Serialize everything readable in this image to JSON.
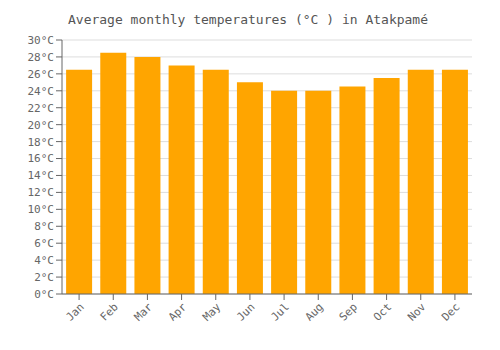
{
  "chart_data": {
    "type": "bar",
    "title": "Average monthly temperatures (°C ) in Atakpamé",
    "categories": [
      "Jan",
      "Feb",
      "Mar",
      "Apr",
      "May",
      "Jun",
      "Jul",
      "Aug",
      "Sep",
      "Oct",
      "Nov",
      "Dec"
    ],
    "values": [
      26.5,
      28.5,
      28.0,
      27.0,
      26.5,
      25.0,
      24.0,
      24.0,
      24.5,
      25.5,
      26.5,
      26.5
    ],
    "color": "#FFA500",
    "ylim": [
      0,
      30
    ],
    "yticks": [
      {
        "value": 0,
        "label": "0°C"
      },
      {
        "value": 2,
        "label": "2°C"
      },
      {
        "value": 4,
        "label": "4°C"
      },
      {
        "value": 6,
        "label": "6°C"
      },
      {
        "value": 8,
        "label": "8°C"
      },
      {
        "value": 10,
        "label": "10°C"
      },
      {
        "value": 12,
        "label": "12°C"
      },
      {
        "value": 14,
        "label": "14°C"
      },
      {
        "value": 16,
        "label": "16°C"
      },
      {
        "value": 18,
        "label": "18°C"
      },
      {
        "value": 20,
        "label": "20°C"
      },
      {
        "value": 22,
        "label": "22°C"
      },
      {
        "value": 24,
        "label": "24°C"
      },
      {
        "value": 26,
        "label": "26°C"
      },
      {
        "value": 28,
        "label": "28°C"
      },
      {
        "value": 30,
        "label": "30°C"
      }
    ],
    "grid": true
  }
}
